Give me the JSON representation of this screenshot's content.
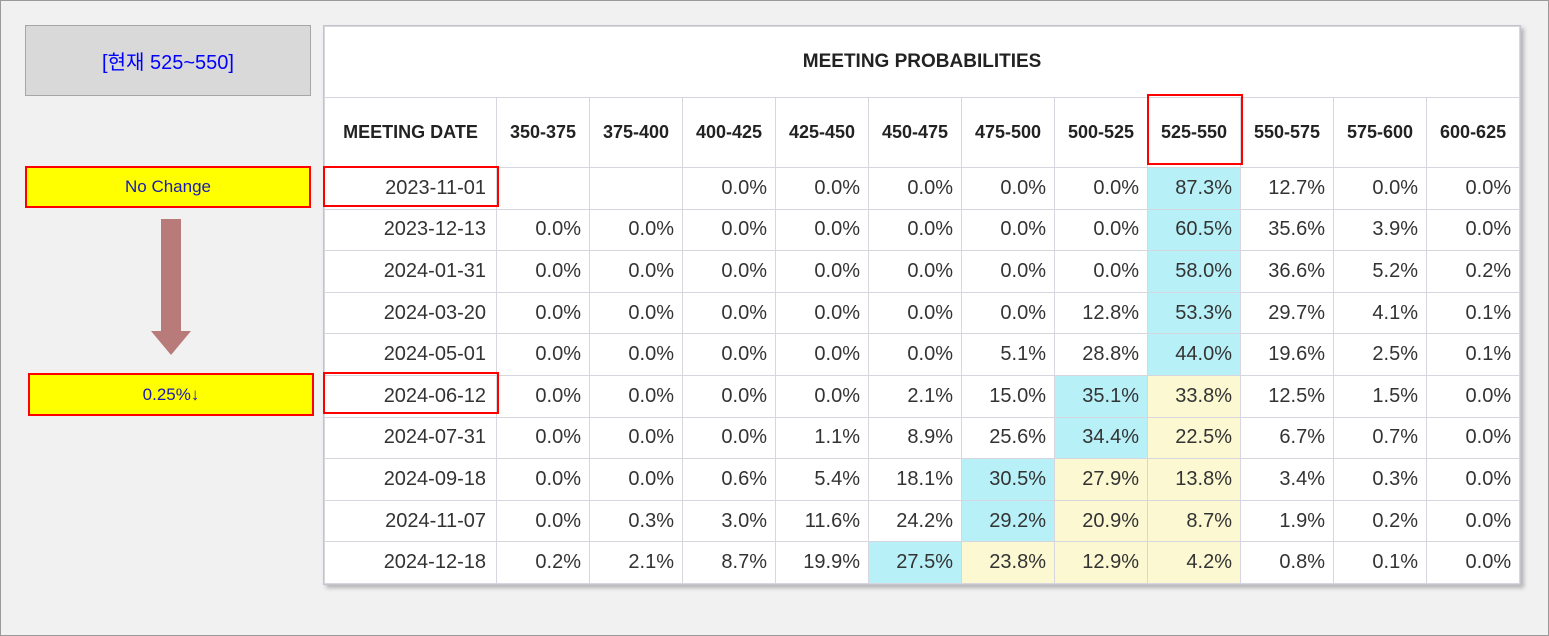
{
  "current_label": "[현재 525~550]",
  "labels": {
    "no_change": "No Change",
    "cut": "0.25%↓"
  },
  "colors": {
    "highlight_blue": "#b8f0f8",
    "highlight_cream": "#fbf8d2",
    "label_yellow": "#ffff00",
    "outline_red": "#ff0000",
    "arrow": "#b97a7a"
  },
  "table": {
    "title": "MEETING PROBABILITIES",
    "columns": [
      "MEETING DATE",
      "350-375",
      "375-400",
      "400-425",
      "425-450",
      "450-475",
      "475-500",
      "500-525",
      "525-550",
      "550-575",
      "575-600",
      "600-625"
    ],
    "rows": [
      {
        "date": "2023-11-01",
        "values": [
          "",
          "",
          "0.0%",
          "0.0%",
          "0.0%",
          "0.0%",
          "0.0%",
          "87.3%",
          "12.7%",
          "0.0%",
          "0.0%"
        ],
        "blue": [
          7
        ],
        "cream": []
      },
      {
        "date": "2023-12-13",
        "values": [
          "0.0%",
          "0.0%",
          "0.0%",
          "0.0%",
          "0.0%",
          "0.0%",
          "0.0%",
          "60.5%",
          "35.6%",
          "3.9%",
          "0.0%"
        ],
        "blue": [
          7
        ],
        "cream": []
      },
      {
        "date": "2024-01-31",
        "values": [
          "0.0%",
          "0.0%",
          "0.0%",
          "0.0%",
          "0.0%",
          "0.0%",
          "0.0%",
          "58.0%",
          "36.6%",
          "5.2%",
          "0.2%"
        ],
        "blue": [
          7
        ],
        "cream": []
      },
      {
        "date": "2024-03-20",
        "values": [
          "0.0%",
          "0.0%",
          "0.0%",
          "0.0%",
          "0.0%",
          "0.0%",
          "12.8%",
          "53.3%",
          "29.7%",
          "4.1%",
          "0.1%"
        ],
        "blue": [
          7
        ],
        "cream": []
      },
      {
        "date": "2024-05-01",
        "values": [
          "0.0%",
          "0.0%",
          "0.0%",
          "0.0%",
          "0.0%",
          "5.1%",
          "28.8%",
          "44.0%",
          "19.6%",
          "2.5%",
          "0.1%"
        ],
        "blue": [
          7
        ],
        "cream": []
      },
      {
        "date": "2024-06-12",
        "values": [
          "0.0%",
          "0.0%",
          "0.0%",
          "0.0%",
          "2.1%",
          "15.0%",
          "35.1%",
          "33.8%",
          "12.5%",
          "1.5%",
          "0.0%"
        ],
        "blue": [
          6
        ],
        "cream": [
          7
        ]
      },
      {
        "date": "2024-07-31",
        "values": [
          "0.0%",
          "0.0%",
          "0.0%",
          "1.1%",
          "8.9%",
          "25.6%",
          "34.4%",
          "22.5%",
          "6.7%",
          "0.7%",
          "0.0%"
        ],
        "blue": [
          6
        ],
        "cream": [
          7
        ]
      },
      {
        "date": "2024-09-18",
        "values": [
          "0.0%",
          "0.0%",
          "0.6%",
          "5.4%",
          "18.1%",
          "30.5%",
          "27.9%",
          "13.8%",
          "3.4%",
          "0.3%",
          "0.0%"
        ],
        "blue": [
          5
        ],
        "cream": [
          6,
          7
        ]
      },
      {
        "date": "2024-11-07",
        "values": [
          "0.0%",
          "0.3%",
          "3.0%",
          "11.6%",
          "24.2%",
          "29.2%",
          "20.9%",
          "8.7%",
          "1.9%",
          "0.2%",
          "0.0%"
        ],
        "blue": [
          5
        ],
        "cream": [
          6,
          7
        ]
      },
      {
        "date": "2024-12-18",
        "values": [
          "0.2%",
          "2.1%",
          "8.7%",
          "19.9%",
          "27.5%",
          "23.8%",
          "12.9%",
          "4.2%",
          "0.8%",
          "0.1%",
          "0.0%"
        ],
        "blue": [
          4
        ],
        "cream": [
          5,
          6,
          7
        ]
      }
    ]
  }
}
